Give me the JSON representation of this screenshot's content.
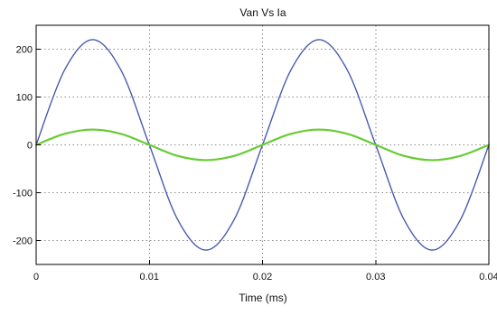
{
  "chart_data": {
    "type": "line",
    "title": "Van Vs Ia",
    "xlabel": "Time (ms)",
    "ylabel": "",
    "xlim": [
      0,
      0.04
    ],
    "ylim": [
      -250,
      250
    ],
    "grid": true,
    "legend": "none",
    "x_ticks": [
      0,
      0.01,
      0.02,
      0.03,
      0.04
    ],
    "x_tick_labels": [
      "0",
      "0.01",
      "0.02",
      "0.03",
      "0.04"
    ],
    "y_ticks": [
      -200,
      -100,
      0,
      100,
      200
    ],
    "y_tick_labels": [
      "-200",
      "-100",
      "0",
      "100",
      "200"
    ],
    "series": [
      {
        "color": "#4a5bb0",
        "x": [
          0,
          0.0025,
          0.005,
          0.0075,
          0.01,
          0.0125,
          0.015,
          0.0175,
          0.02,
          0.0225,
          0.025,
          0.0275,
          0.03,
          0.0325,
          0.035,
          0.0375,
          0.04
        ],
        "y": [
          0,
          156,
          220,
          156,
          0,
          -156,
          -220,
          -156,
          0,
          156,
          220,
          156,
          0,
          -156,
          -220,
          -156,
          0
        ]
      },
      {
        "color": "#66cc33",
        "x": [
          0,
          0.0025,
          0.005,
          0.0075,
          0.01,
          0.0125,
          0.015,
          0.0175,
          0.02,
          0.0225,
          0.025,
          0.0275,
          0.03,
          0.0325,
          0.035,
          0.0375,
          0.04
        ],
        "y": [
          0,
          23,
          32,
          23,
          0,
          -23,
          -32,
          -23,
          0,
          23,
          32,
          23,
          0,
          -23,
          -32,
          -23,
          0
        ]
      }
    ]
  }
}
